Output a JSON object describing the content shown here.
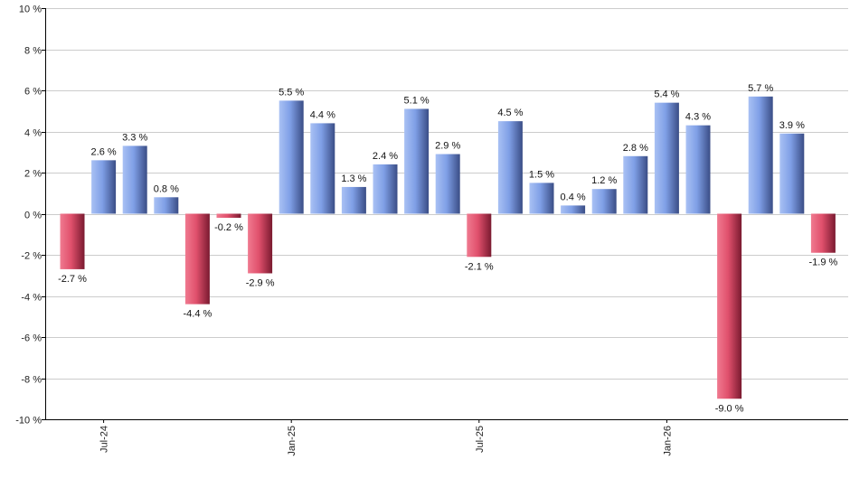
{
  "chart_data": {
    "type": "bar",
    "ylim": [
      -10,
      10
    ],
    "y_ticks": [
      10,
      8,
      6,
      4,
      2,
      0,
      -2,
      -4,
      -6,
      -8,
      -10
    ],
    "y_tick_labels": [
      "10 %",
      "8 %",
      "6 %",
      "4 %",
      "2 %",
      "0 %",
      "-2 %",
      "-4 %",
      "-6 %",
      "-8 %",
      "-10 %"
    ],
    "grid": true,
    "x_tick_labels": [
      {
        "label": "Jul-24",
        "index": 1
      },
      {
        "label": "Jan-25",
        "index": 7
      },
      {
        "label": "Jul-25",
        "index": 13
      },
      {
        "label": "Jan-26",
        "index": 19
      }
    ],
    "values": [
      -2.7,
      2.6,
      3.3,
      0.8,
      -4.4,
      -0.2,
      -2.9,
      5.5,
      4.4,
      1.3,
      2.4,
      5.1,
      2.9,
      -2.1,
      4.5,
      1.5,
      0.4,
      1.2,
      2.8,
      5.4,
      4.3,
      -9.0,
      5.7,
      3.9,
      -1.9
    ],
    "data_labels": [
      "-2.7 %",
      "2.6 %",
      "3.3 %",
      "0.8 %",
      "-4.4 %",
      "-0.2 %",
      "-2.9 %",
      "5.5 %",
      "4.4 %",
      "1.3 %",
      "2.4 %",
      "5.1 %",
      "2.9 %",
      "-2.1 %",
      "4.5 %",
      "1.5 %",
      "0.4 %",
      "1.2 %",
      "2.8 %",
      "5.4 %",
      "4.3 %",
      "-9.0 %",
      "5.7 %",
      "3.9 %",
      "-1.9 %"
    ],
    "colors": {
      "positive": "#7f9fe6",
      "positive_dark": "#3a4d86",
      "negative": "#e0506c",
      "negative_dark": "#7a1a30",
      "grid": "#cccccc",
      "axis": "#000000"
    }
  }
}
